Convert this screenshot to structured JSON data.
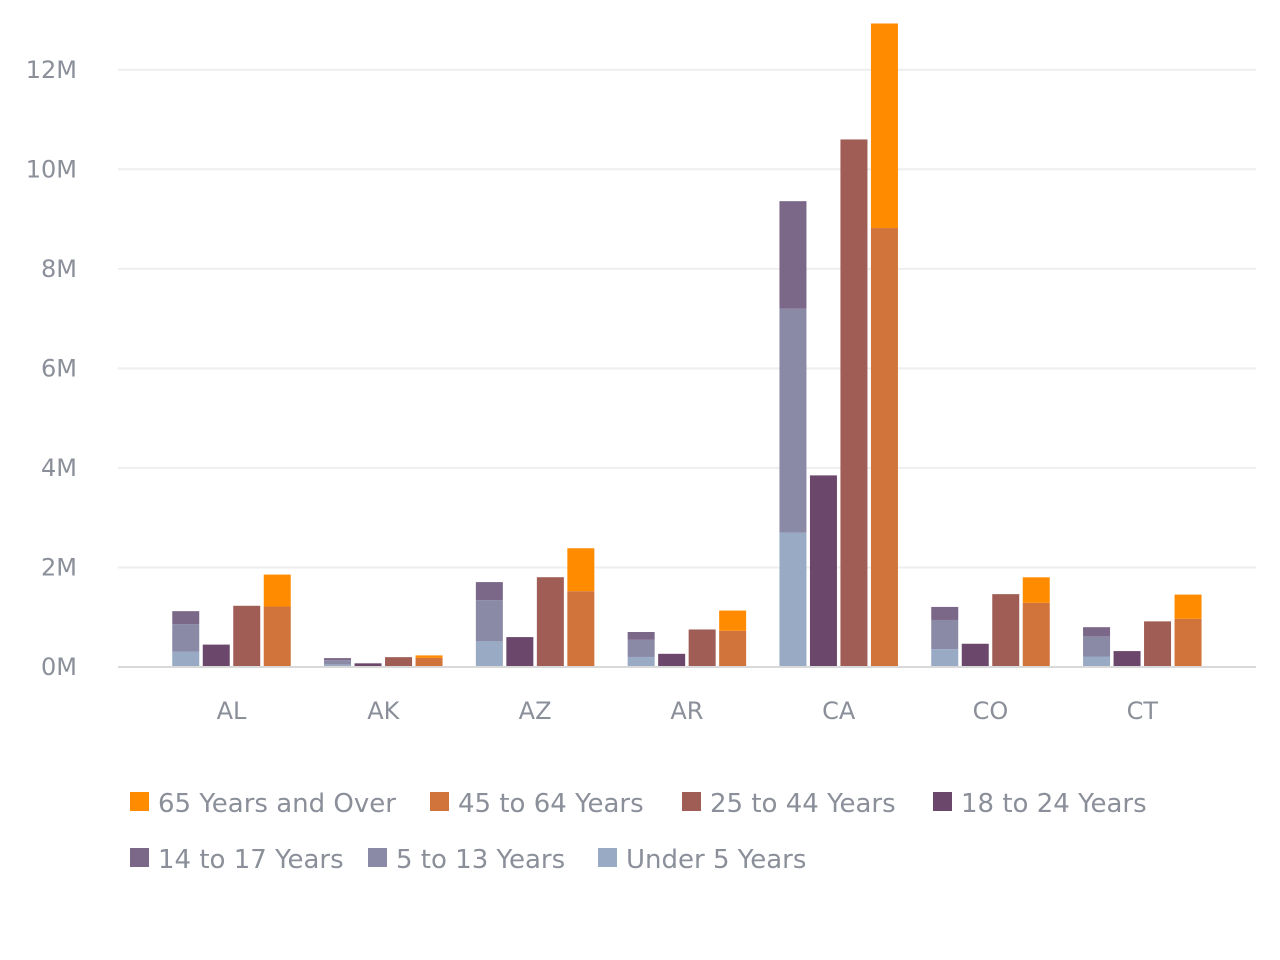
{
  "chart_data": {
    "type": "bar",
    "stacked_groups": true,
    "grid": true,
    "legend_position": "bottom",
    "y_tick_labels": [
      "0M",
      "2M",
      "4M",
      "6M",
      "8M",
      "10M",
      "12M"
    ],
    "y_ticks": [
      0,
      2000000,
      4000000,
      6000000,
      8000000,
      10000000,
      12000000
    ],
    "ylim": [
      0,
      13000000
    ],
    "categories": [
      "AL",
      "AK",
      "AZ",
      "AR",
      "CA",
      "CO",
      "CT"
    ],
    "series": [
      {
        "name": "Under 5 Years",
        "color": "#98aac4",
        "stack": "youth",
        "values": [
          310000,
          52000,
          515000,
          202000,
          2700000,
          358000,
          211000
        ]
      },
      {
        "name": "5 to 13 Years",
        "color": "#8a89a6",
        "stack": "youth",
        "values": [
          552000,
          85000,
          828000,
          344000,
          4500000,
          587000,
          404000
        ]
      },
      {
        "name": "14 to 17 Years",
        "color": "#7b6888",
        "stack": "youth",
        "values": [
          260000,
          42000,
          363000,
          157000,
          2160000,
          262000,
          185000
        ]
      },
      {
        "name": "18 to 24 Years",
        "color": "#6b486b",
        "stack": "young-adult",
        "values": [
          450000,
          74000,
          601000,
          265000,
          3850000,
          467000,
          320000
        ]
      },
      {
        "name": "25 to 44 Years",
        "color": "#a05d56",
        "stack": "adult",
        "values": [
          1230000,
          198000,
          1804000,
          754000,
          10600000,
          1464000,
          917000
        ]
      },
      {
        "name": "45 to 64 Years",
        "color": "#d0743c",
        "stack": "senior",
        "values": [
          1216000,
          183000,
          1523000,
          727000,
          8820000,
          1290000,
          968000
        ]
      },
      {
        "name": "65 Years and Over",
        "color": "#ff8c00",
        "stack": "senior",
        "values": [
          641000,
          50000,
          863000,
          407000,
          4110000,
          512000,
          487000
        ]
      }
    ]
  },
  "legend": {
    "items": [
      {
        "label": "65 Years and Over",
        "color": "#ff8c00"
      },
      {
        "label": "45 to 64 Years",
        "color": "#d0743c"
      },
      {
        "label": "25 to 44 Years",
        "color": "#a05d56"
      },
      {
        "label": "18 to 24 Years",
        "color": "#6b486b"
      },
      {
        "label": "14 to 17 Years",
        "color": "#7b6888"
      },
      {
        "label": "5 to 13 Years",
        "color": "#8a89a6"
      },
      {
        "label": "Under 5 Years",
        "color": "#98aac4"
      }
    ]
  }
}
